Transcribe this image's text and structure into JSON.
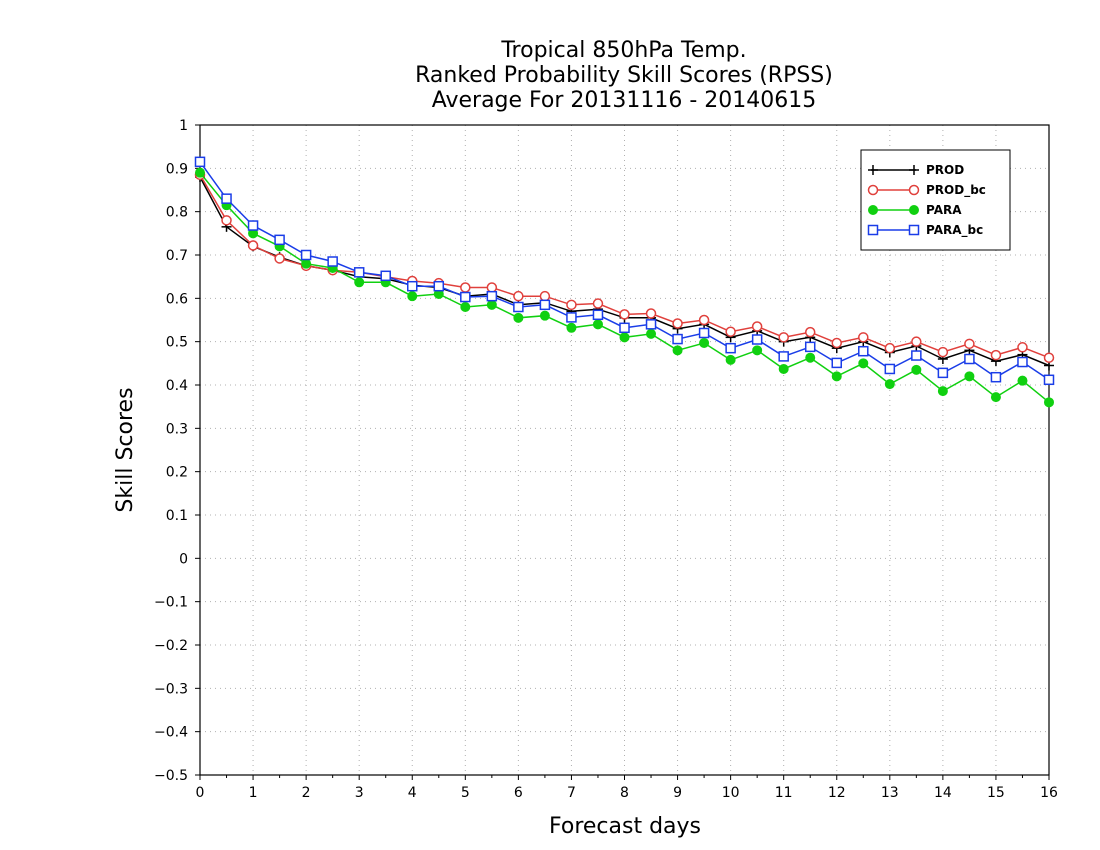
{
  "chart_data": {
    "type": "line",
    "title": [
      "Tropical 850hPa Temp.",
      "Ranked Probability Skill Scores (RPSS)",
      "Average For 20131116 - 20140615"
    ],
    "xlabel": "Forecast days",
    "ylabel": "Skill Scores",
    "xlim": [
      0,
      16
    ],
    "ylim": [
      -0.5,
      1
    ],
    "xticks": [
      0,
      1,
      2,
      3,
      4,
      5,
      6,
      7,
      8,
      9,
      10,
      11,
      12,
      13,
      14,
      15,
      16
    ],
    "yticks": [
      -0.5,
      -0.4,
      -0.3,
      -0.2,
      -0.1,
      0,
      0.1,
      0.2,
      0.3,
      0.4,
      0.5,
      0.6,
      0.7,
      0.8,
      0.9,
      1
    ],
    "ytick_labels": [
      "−0.5",
      "−0.4",
      "−0.3",
      "−0.2",
      "−0.1",
      "0",
      "0.1",
      "0.2",
      "0.3",
      "0.4",
      "0.5",
      "0.6",
      "0.7",
      "0.8",
      "0.9",
      "1"
    ],
    "grid": true,
    "legend_position": "top-right",
    "x": [
      0,
      0.5,
      1,
      1.5,
      2,
      2.5,
      3,
      3.5,
      4,
      4.5,
      5,
      5.5,
      6,
      6.5,
      7,
      7.5,
      8,
      8.5,
      9,
      9.5,
      10,
      10.5,
      11,
      11.5,
      12,
      12.5,
      13,
      13.5,
      14,
      14.5,
      15,
      15.5,
      16
    ],
    "series": [
      {
        "name": "PROD",
        "color": "#000000",
        "marker": "plus",
        "values": [
          0.88,
          0.765,
          0.72,
          0.695,
          0.675,
          0.665,
          0.65,
          0.645,
          0.63,
          0.625,
          0.605,
          0.61,
          0.585,
          0.59,
          0.57,
          0.575,
          0.555,
          0.555,
          0.53,
          0.54,
          0.51,
          0.525,
          0.5,
          0.51,
          0.485,
          0.5,
          0.475,
          0.49,
          0.46,
          0.48,
          0.455,
          0.47,
          0.445
        ]
      },
      {
        "name": "PROD_bc",
        "color": "#e0403c",
        "marker": "circle-open",
        "values": [
          0.885,
          0.78,
          0.722,
          0.692,
          0.675,
          0.665,
          0.66,
          0.65,
          0.64,
          0.635,
          0.625,
          0.625,
          0.605,
          0.605,
          0.585,
          0.588,
          0.563,
          0.565,
          0.542,
          0.55,
          0.523,
          0.535,
          0.51,
          0.522,
          0.497,
          0.51,
          0.485,
          0.5,
          0.476,
          0.495,
          0.469,
          0.487,
          0.463
        ]
      },
      {
        "name": "PARA",
        "color": "#10d010",
        "marker": "circle-filled",
        "values": [
          0.89,
          0.815,
          0.75,
          0.72,
          0.68,
          0.67,
          0.637,
          0.637,
          0.605,
          0.61,
          0.58,
          0.585,
          0.555,
          0.56,
          0.532,
          0.54,
          0.51,
          0.518,
          0.48,
          0.497,
          0.458,
          0.48,
          0.437,
          0.463,
          0.42,
          0.45,
          0.402,
          0.435,
          0.386,
          0.42,
          0.372,
          0.41,
          0.36
        ]
      },
      {
        "name": "PARA_bc",
        "color": "#1a3de8",
        "marker": "square-open",
        "values": [
          0.915,
          0.83,
          0.768,
          0.735,
          0.7,
          0.685,
          0.66,
          0.652,
          0.628,
          0.628,
          0.603,
          0.605,
          0.58,
          0.585,
          0.556,
          0.562,
          0.532,
          0.54,
          0.506,
          0.52,
          0.485,
          0.505,
          0.466,
          0.488,
          0.451,
          0.478,
          0.437,
          0.468,
          0.428,
          0.46,
          0.418,
          0.453,
          0.412
        ]
      }
    ]
  }
}
